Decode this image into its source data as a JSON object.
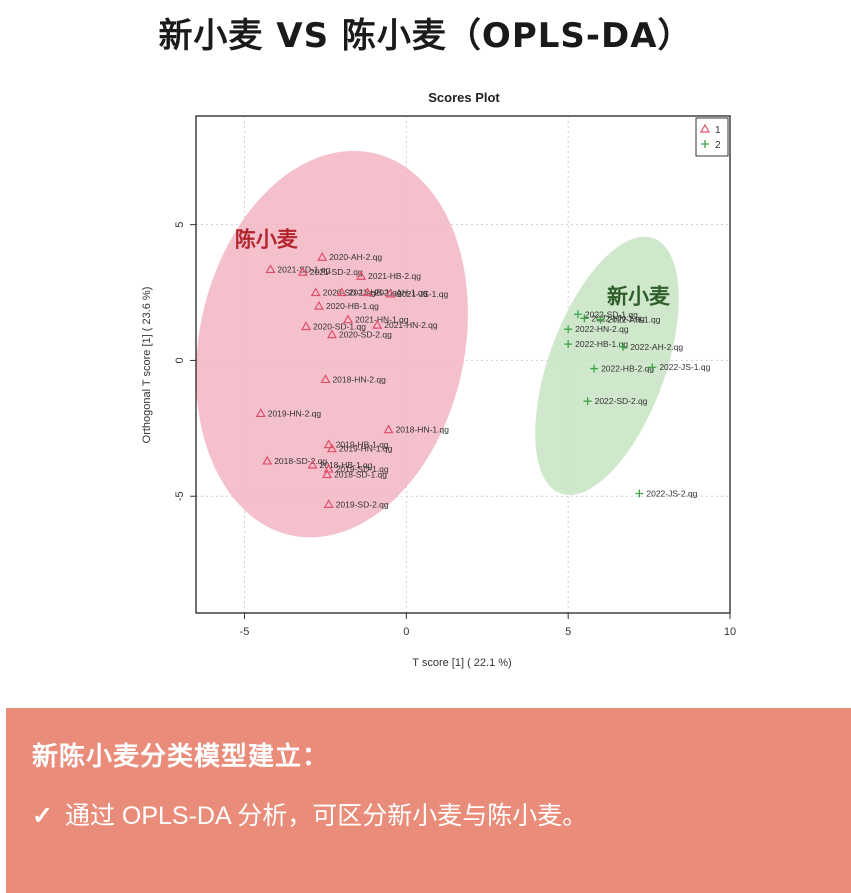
{
  "headline": "新小麦 VS 陈小麦（OPLS-DA）",
  "chart_data": {
    "type": "scatter",
    "title": "Scores Plot",
    "xlabel": "T score [1] ( 22.1 %)",
    "ylabel": "Orthogonal T score [1] ( 23.6 %)",
    "xlim": [
      -6.5,
      10
    ],
    "ylim": [
      -9.3,
      9
    ],
    "xticks": [
      -5,
      0,
      5,
      10
    ],
    "xtick_labels": [
      "-5",
      "0",
      "5",
      "10"
    ],
    "yticks": [
      5,
      0,
      -5
    ],
    "ytick_labels": [
      "5",
      "0",
      "-5"
    ],
    "grid": true,
    "legend_position": "top-right",
    "series": [
      {
        "name": "1",
        "marker": "triangle",
        "color": "#e0506a",
        "ellipse_color": "#f2b5c3",
        "points": [
          {
            "label": "2020-AH-2.qg",
            "x": -2.6,
            "y": 3.8
          },
          {
            "label": "2021-SD-1.qg",
            "x": -4.2,
            "y": 3.35
          },
          {
            "label": "2021-SD-2.qg",
            "x": -3.2,
            "y": 3.25
          },
          {
            "label": "2021-HB-2.qg",
            "x": -1.4,
            "y": 3.1
          },
          {
            "label": "2020-SD-1.qg",
            "x": -2.8,
            "y": 2.5
          },
          {
            "label": "2021-HB-1.qg",
            "x": -2.0,
            "y": 2.5
          },
          {
            "label": "2021-AH-1.qg",
            "x": -1.2,
            "y": 2.5
          },
          {
            "label": "2021-JS-1.qg",
            "x": -0.5,
            "y": 2.45
          },
          {
            "label": "2020-HB-1.qg",
            "x": -2.7,
            "y": 2.0
          },
          {
            "label": "2021-HN-1.qg",
            "x": -1.8,
            "y": 1.5
          },
          {
            "label": "2021-HN-2.qg",
            "x": -0.9,
            "y": 1.3
          },
          {
            "label": "2020-SD-1.qg",
            "x": -3.1,
            "y": 1.25
          },
          {
            "label": "2020-SD-2.qg",
            "x": -2.3,
            "y": 0.95
          },
          {
            "label": "2018-HN-2.qg",
            "x": -2.5,
            "y": -0.7
          },
          {
            "label": "2019-HN-2.qg",
            "x": -4.5,
            "y": -1.95
          },
          {
            "label": "2018-HN-1.qg",
            "x": -0.55,
            "y": -2.55
          },
          {
            "label": "2019-HB-1.qg",
            "x": -2.4,
            "y": -3.1
          },
          {
            "label": "2019-HN-1.qg",
            "x": -2.3,
            "y": -3.25
          },
          {
            "label": "2018-SD-2.qg",
            "x": -4.3,
            "y": -3.7
          },
          {
            "label": "2018-HB-1.qg",
            "x": -2.9,
            "y": -3.85
          },
          {
            "label": "2019-SD-1.qg",
            "x": -2.4,
            "y": -4.0
          },
          {
            "label": "2018-SD-1.qg",
            "x": -2.45,
            "y": -4.2
          },
          {
            "label": "2019-SD-2.qg",
            "x": -2.4,
            "y": -5.3
          }
        ]
      },
      {
        "name": "2",
        "marker": "plus",
        "color": "#3fa34a",
        "ellipse_color": "#c7e3c2",
        "points": [
          {
            "label": "2022-SD-1.qg",
            "x": 5.3,
            "y": 1.7
          },
          {
            "label": "2022-HN-1.qg",
            "x": 5.5,
            "y": 1.55
          },
          {
            "label": "2022-AH-1.qg",
            "x": 6.0,
            "y": 1.5
          },
          {
            "label": "2022-HN-2.qg",
            "x": 5.0,
            "y": 1.15
          },
          {
            "label": "2022-HB-1.qg",
            "x": 5.0,
            "y": 0.6
          },
          {
            "label": "2022-AH-2.qg",
            "x": 6.7,
            "y": 0.5
          },
          {
            "label": "2022-HB-2.qg",
            "x": 5.8,
            "y": -0.3
          },
          {
            "label": "2022-JS-1.qg",
            "x": 7.6,
            "y": -0.25
          },
          {
            "label": "2022-SD-2.qg",
            "x": 5.6,
            "y": -1.5
          },
          {
            "label": "2022-JS-2.qg",
            "x": 7.2,
            "y": -4.9
          }
        ]
      }
    ],
    "ellipses": [
      {
        "series": "1",
        "cx": -2.3,
        "cy": 0.6,
        "rx": 4.1,
        "ry": 7.2,
        "rotation_deg": 12
      },
      {
        "series": "2",
        "cx": 6.2,
        "cy": -0.2,
        "rx": 1.8,
        "ry": 5.0,
        "rotation_deg": 20
      }
    ],
    "annotations": [
      {
        "text": "陈小麦",
        "x": -5.3,
        "y": 4.2,
        "color": "#b3262e"
      },
      {
        "text": "新小麦",
        "x": 6.2,
        "y": 2.1,
        "color": "#2e5e2a"
      }
    ]
  },
  "note": {
    "title": "新陈小麦分类模型建立：",
    "check_icon": "✓",
    "text": "通过 OPLS-DA 分析，可区分新小麦与陈小麦。"
  }
}
